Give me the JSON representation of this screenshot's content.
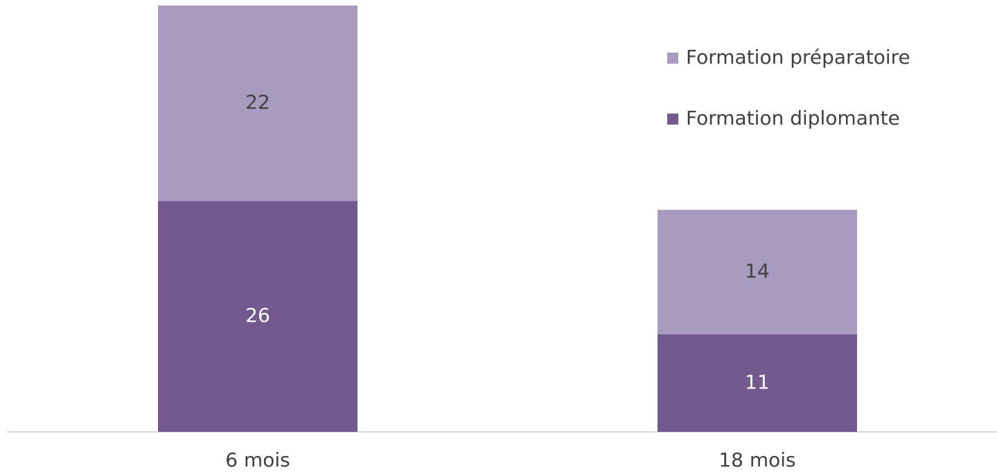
{
  "chart_data": {
    "type": "stacked-bar",
    "categories": [
      "6 mois",
      "18 mois"
    ],
    "series": [
      {
        "name": "Formation diplomante",
        "color": "#725a8f",
        "values": [
          26,
          11
        ]
      },
      {
        "name": "Formation préparatoire",
        "color": "#a99bbf",
        "values": [
          22,
          14
        ]
      }
    ],
    "legend": "top-right"
  }
}
